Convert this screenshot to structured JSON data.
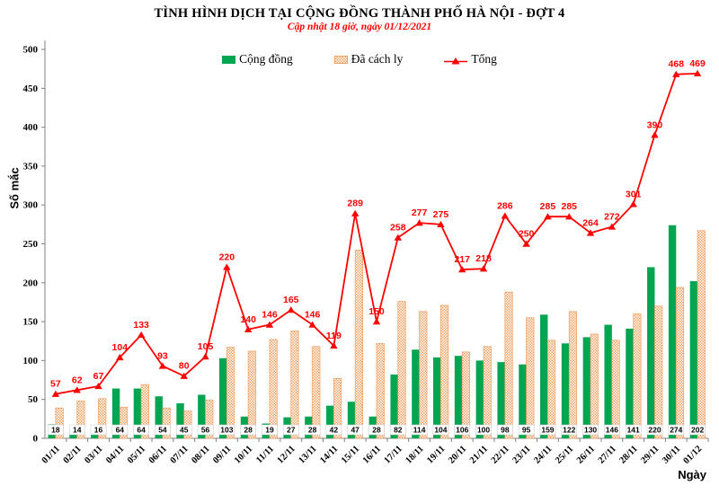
{
  "chart_data": {
    "type": "composite",
    "title": "TÌNH HÌNH DỊCH TẠI CỘNG ĐỒNG THÀNH PHỐ HÀ NỘI - ĐỢT 4",
    "subtitle": "Cập nhật 18 giờ, ngày 01/12/2021",
    "xlabel": "Ngày",
    "ylabel": "Số mắc",
    "ylim": [
      0,
      500
    ],
    "ytick_step": 50,
    "grid": false,
    "legend_position": "top-center",
    "categories": [
      "01/11",
      "02/11",
      "03/11",
      "04/11",
      "05/11",
      "06/11",
      "07/11",
      "08/11",
      "09/11",
      "10/11",
      "11/11",
      "12/11",
      "13/11",
      "14/11",
      "15/11",
      "16/11",
      "17/11",
      "18/11",
      "19/11",
      "20/11",
      "21/11",
      "22/11",
      "23/11",
      "24/11",
      "25/11",
      "26/11",
      "27/11",
      "28/11",
      "29/11",
      "30/11",
      "01/12"
    ],
    "series": [
      {
        "name": "Cộng đồng",
        "type": "bar",
        "fill": "solid",
        "color": "#00a551",
        "data_labels": "base-white-box",
        "values": [
          18,
          14,
          16,
          64,
          64,
          54,
          45,
          56,
          103,
          28,
          19,
          27,
          28,
          42,
          47,
          28,
          82,
          114,
          104,
          106,
          100,
          98,
          95,
          159,
          122,
          130,
          146,
          141,
          220,
          274,
          202
        ]
      },
      {
        "name": "Đã cách ly",
        "type": "bar",
        "fill": "checker-hatch",
        "color": "#f0a265",
        "data_labels": "none",
        "values": [
          39,
          48,
          51,
          40,
          69,
          39,
          35,
          49,
          117,
          112,
          127,
          138,
          118,
          77,
          242,
          122,
          176,
          163,
          171,
          111,
          118,
          188,
          155,
          126,
          163,
          134,
          126,
          160,
          170,
          194,
          267
        ]
      },
      {
        "name": "Tổng",
        "type": "line",
        "marker": "triangle",
        "color": "#ff0000",
        "data_labels": "above",
        "values": [
          57,
          62,
          67,
          104,
          133,
          93,
          80,
          105,
          220,
          140,
          146,
          165,
          146,
          119,
          289,
          150,
          258,
          277,
          275,
          217,
          218,
          286,
          250,
          285,
          285,
          264,
          272,
          301,
          390,
          468,
          469
        ]
      }
    ],
    "colors": {
      "community": "#00a551",
      "quarantined": "#f0a265",
      "total": "#ff0000",
      "axis": "#808080",
      "subtitle": "#ff0000"
    }
  }
}
